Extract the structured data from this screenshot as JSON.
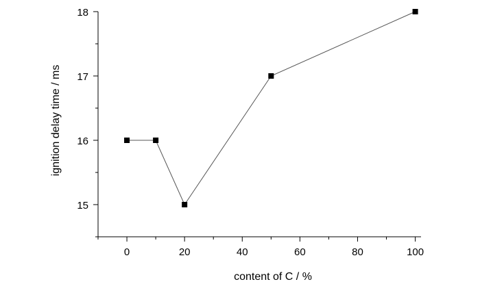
{
  "chart_data": {
    "type": "line",
    "xlabel": "content of C / %",
    "ylabel": "ignition delay time / ms",
    "xlim": [
      -10,
      102
    ],
    "ylim": [
      14.5,
      18
    ],
    "x_ticks": [
      0,
      20,
      40,
      60,
      80,
      100
    ],
    "y_ticks": [
      15,
      16,
      17,
      18
    ],
    "grid": false,
    "series": [
      {
        "x": [
          0,
          10,
          20,
          50,
          100
        ],
        "y": [
          16,
          16,
          15,
          17,
          18
        ],
        "marker": "square",
        "color": "#000000",
        "line_color": "#555555"
      }
    ]
  }
}
